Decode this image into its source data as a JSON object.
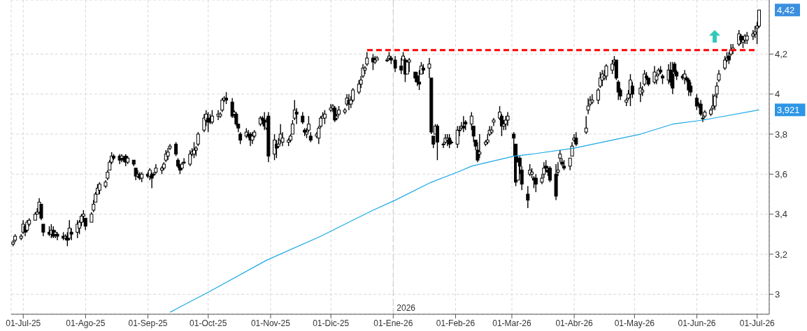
{
  "chart_data": {
    "type": "candlestick",
    "grid": true,
    "legend": false,
    "xlim": [
      "2025-06-25",
      "2026-07-07"
    ],
    "xticks": [
      {
        "value": "2025-07-01",
        "label": "01-Jul-25"
      },
      {
        "value": "2025-08-01",
        "label": "01-Ago-25"
      },
      {
        "value": "2025-09-01",
        "label": "01-Sep-25"
      },
      {
        "value": "2025-10-01",
        "label": "01-Oct-25"
      },
      {
        "value": "2025-11-01",
        "label": "01-Nov-25"
      },
      {
        "value": "2025-12-01",
        "label": "01-Dic-25"
      },
      {
        "value": "2026-01-01",
        "label": "01-Ene-26"
      },
      {
        "value": "2026-02-01",
        "label": "01-Feb-26"
      },
      {
        "value": "2026-03-01",
        "label": "01-Mar-26"
      },
      {
        "value": "2026-04-01",
        "label": "01-Abr-26"
      },
      {
        "value": "2026-05-01",
        "label": "01-May-26"
      },
      {
        "value": "2026-06-01",
        "label": "01-Jun-26"
      },
      {
        "value": "2026-07-01",
        "label": "01-Jul-26"
      }
    ],
    "ylim": [
      2.9,
      4.47
    ],
    "yticks": [
      3,
      {
        "value": 3.2,
        "label": "3,2"
      },
      {
        "value": 3.4,
        "label": "3,4"
      },
      {
        "value": 3.6,
        "label": "3,6"
      },
      {
        "value": 3.8,
        "label": "3,8"
      },
      4,
      {
        "value": 4.2,
        "label": "4,2"
      }
    ],
    "ref_lines": [
      {
        "axis": "x",
        "value": "2026-01-01",
        "label": "2026",
        "color": "#c8c8c8",
        "line_style": "dashed"
      }
    ],
    "annotations": [
      {
        "text": "4,42",
        "x": "2026-07-02",
        "y": 4.42
      },
      {
        "text": "3,921",
        "x": "2026-07-02",
        "y": 3.921
      }
    ],
    "series": [
      {
        "type": "candlestick",
        "color": "#000000",
        "x": [
          "2025-06-26",
          "2025-06-27",
          "2025-06-30",
          "2025-07-01",
          "2025-07-02",
          "2025-07-03",
          "2025-07-04",
          "2025-07-07",
          "2025-07-08",
          "2025-07-09",
          "2025-07-10",
          "2025-07-11",
          "2025-07-14",
          "2025-07-15",
          "2025-07-16",
          "2025-07-17",
          "2025-07-18",
          "2025-07-21",
          "2025-07-22",
          "2025-07-23",
          "2025-07-24",
          "2025-07-25",
          "2025-07-28",
          "2025-07-29",
          "2025-07-30",
          "2025-07-31",
          "2025-08-01",
          "2025-08-04",
          "2025-08-05",
          "2025-08-06",
          "2025-08-07",
          "2025-08-08",
          "2025-08-11",
          "2025-08-12",
          "2025-08-13",
          "2025-08-14",
          "2025-08-15",
          "2025-08-18",
          "2025-08-19",
          "2025-08-20",
          "2025-08-21",
          "2025-08-22",
          "2025-08-25",
          "2025-08-26",
          "2025-08-27",
          "2025-08-28",
          "2025-08-29",
          "2025-09-01",
          "2025-09-02",
          "2025-09-03",
          "2025-09-04",
          "2025-09-05",
          "2025-09-08",
          "2025-09-09",
          "2025-09-10",
          "2025-09-11",
          "2025-09-12",
          "2025-09-15",
          "2025-09-16",
          "2025-09-17",
          "2025-09-18",
          "2025-09-19",
          "2025-09-22",
          "2025-09-23",
          "2025-09-24",
          "2025-09-25",
          "2025-09-26",
          "2025-09-29",
          "2025-09-30",
          "2025-10-01",
          "2025-10-02",
          "2025-10-03",
          "2025-10-06",
          "2025-10-07",
          "2025-10-08",
          "2025-10-09",
          "2025-10-10",
          "2025-10-13",
          "2025-10-14",
          "2025-10-15",
          "2025-10-16",
          "2025-10-17",
          "2025-10-20",
          "2025-10-21",
          "2025-10-22",
          "2025-10-23",
          "2025-10-24",
          "2025-10-27",
          "2025-10-28",
          "2025-10-29",
          "2025-10-30",
          "2025-10-31",
          "2025-11-03",
          "2025-11-04",
          "2025-11-05",
          "2025-11-06",
          "2025-11-07",
          "2025-11-10",
          "2025-11-11",
          "2025-11-12",
          "2025-11-13",
          "2025-11-14",
          "2025-11-17",
          "2025-11-18",
          "2025-11-19",
          "2025-11-20",
          "2025-11-21",
          "2025-11-24",
          "2025-11-25",
          "2025-11-26",
          "2025-11-27",
          "2025-11-28",
          "2025-12-01",
          "2025-12-02",
          "2025-12-03",
          "2025-12-04",
          "2025-12-05",
          "2025-12-08",
          "2025-12-09",
          "2025-12-10",
          "2025-12-11",
          "2025-12-12",
          "2025-12-15",
          "2025-12-16",
          "2025-12-17",
          "2025-12-18",
          "2025-12-19",
          "2025-12-22",
          "2025-12-23",
          "2025-12-24",
          "2025-12-29",
          "2025-12-30",
          "2025-12-31",
          "2026-01-02",
          "2026-01-05",
          "2026-01-06",
          "2026-01-07",
          "2026-01-08",
          "2026-01-09",
          "2026-01-12",
          "2026-01-13",
          "2026-01-14",
          "2026-01-15",
          "2026-01-16",
          "2026-01-19",
          "2026-01-20",
          "2026-01-21",
          "2026-01-22",
          "2026-01-23",
          "2026-01-26",
          "2026-01-27",
          "2026-01-28",
          "2026-01-29",
          "2026-01-30",
          "2026-02-02",
          "2026-02-03",
          "2026-02-04",
          "2026-02-05",
          "2026-02-06",
          "2026-02-09",
          "2026-02-10",
          "2026-02-11",
          "2026-02-12",
          "2026-02-13",
          "2026-02-16",
          "2026-02-17",
          "2026-02-18",
          "2026-02-19",
          "2026-02-20",
          "2026-02-23",
          "2026-02-24",
          "2026-02-25",
          "2026-02-26",
          "2026-02-27",
          "2026-03-02",
          "2026-03-03",
          "2026-03-04",
          "2026-03-05",
          "2026-03-06",
          "2026-03-09",
          "2026-03-10",
          "2026-03-11",
          "2026-03-12",
          "2026-03-13",
          "2026-03-16",
          "2026-03-17",
          "2026-03-18",
          "2026-03-19",
          "2026-03-20",
          "2026-03-23",
          "2026-03-24",
          "2026-03-25",
          "2026-03-26",
          "2026-03-27",
          "2026-03-30",
          "2026-03-31",
          "2026-04-01",
          "2026-04-02",
          "2026-04-07",
          "2026-04-08",
          "2026-04-09",
          "2026-04-10",
          "2026-04-13",
          "2026-04-14",
          "2026-04-15",
          "2026-04-16",
          "2026-04-17",
          "2026-04-20",
          "2026-04-21",
          "2026-04-22",
          "2026-04-23",
          "2026-04-24",
          "2026-04-27",
          "2026-04-28",
          "2026-04-29",
          "2026-04-30",
          "2026-05-04",
          "2026-05-05",
          "2026-05-06",
          "2026-05-07",
          "2026-05-08",
          "2026-05-11",
          "2026-05-12",
          "2026-05-13",
          "2026-05-14",
          "2026-05-15",
          "2026-05-18",
          "2026-05-19",
          "2026-05-20",
          "2026-05-21",
          "2026-05-22",
          "2026-05-25",
          "2026-05-26",
          "2026-05-27",
          "2026-05-28",
          "2026-05-29",
          "2026-06-01",
          "2026-06-02",
          "2026-06-03",
          "2026-06-04",
          "2026-06-05",
          "2026-06-08",
          "2026-06-09",
          "2026-06-10",
          "2026-06-11",
          "2026-06-12",
          "2026-06-15",
          "2026-06-16",
          "2026-06-17",
          "2026-06-18",
          "2026-06-19",
          "2026-06-22",
          "2026-06-23",
          "2026-06-24",
          "2026-06-25",
          "2026-06-26",
          "2026-06-29",
          "2026-06-30",
          "2026-07-01",
          "2026-07-02"
        ],
        "ohlc": [
          [
            3.25,
            3.27,
            3.24,
            3.26
          ],
          [
            3.27,
            3.3,
            3.26,
            3.29
          ],
          [
            3.28,
            3.3,
            3.27,
            3.29
          ],
          [
            3.31,
            3.37,
            3.3,
            3.35
          ],
          [
            3.34,
            3.35,
            3.29,
            3.31
          ],
          [
            3.32,
            3.37,
            3.31,
            3.36
          ],
          [
            3.35,
            3.38,
            3.34,
            3.37
          ],
          [
            3.37,
            3.41,
            3.37,
            3.4
          ],
          [
            3.4,
            3.43,
            3.4,
            3.41
          ],
          [
            3.41,
            3.48,
            3.4,
            3.46
          ],
          [
            3.45,
            3.45,
            3.37,
            3.38
          ],
          [
            3.35,
            3.35,
            3.29,
            3.31
          ],
          [
            3.31,
            3.34,
            3.29,
            3.3
          ],
          [
            3.3,
            3.35,
            3.28,
            3.32
          ],
          [
            3.32,
            3.34,
            3.28,
            3.29
          ],
          [
            3.3,
            3.32,
            3.28,
            3.31
          ],
          [
            3.3,
            3.31,
            3.27,
            3.29
          ],
          [
            3.29,
            3.31,
            3.27,
            3.28
          ],
          [
            3.28,
            3.3,
            3.27,
            3.29
          ],
          [
            3.29,
            3.31,
            3.24,
            3.27
          ],
          [
            3.28,
            3.37,
            3.27,
            3.33
          ],
          [
            3.31,
            3.33,
            3.27,
            3.3
          ],
          [
            3.31,
            3.37,
            3.28,
            3.35
          ],
          [
            3.33,
            3.37,
            3.3,
            3.36
          ],
          [
            3.36,
            3.4,
            3.34,
            3.39
          ],
          [
            3.39,
            3.42,
            3.36,
            3.4
          ],
          [
            3.38,
            3.38,
            3.32,
            3.34
          ],
          [
            3.36,
            3.41,
            3.36,
            3.4
          ],
          [
            3.42,
            3.47,
            3.41,
            3.45
          ],
          [
            3.46,
            3.51,
            3.46,
            3.5
          ],
          [
            3.5,
            3.55,
            3.5,
            3.53
          ],
          [
            3.52,
            3.56,
            3.5,
            3.55
          ],
          [
            3.54,
            3.57,
            3.53,
            3.56
          ],
          [
            3.58,
            3.62,
            3.57,
            3.61
          ],
          [
            3.62,
            3.67,
            3.62,
            3.66
          ],
          [
            3.66,
            3.71,
            3.65,
            3.69
          ],
          [
            3.69,
            3.7,
            3.67,
            3.68
          ],
          [
            3.69,
            3.7,
            3.65,
            3.67
          ],
          [
            3.68,
            3.7,
            3.66,
            3.69
          ],
          [
            3.68,
            3.69,
            3.66,
            3.67
          ],
          [
            3.69,
            3.7,
            3.64,
            3.66
          ],
          [
            3.66,
            3.69,
            3.65,
            3.68
          ],
          [
            3.67,
            3.67,
            3.64,
            3.65
          ],
          [
            3.63,
            3.63,
            3.57,
            3.59
          ],
          [
            3.59,
            3.62,
            3.58,
            3.6
          ],
          [
            3.6,
            3.61,
            3.57,
            3.58
          ],
          [
            3.58,
            3.61,
            3.56,
            3.6
          ],
          [
            3.6,
            3.61,
            3.58,
            3.59
          ],
          [
            3.59,
            3.63,
            3.57,
            3.62
          ],
          [
            3.6,
            3.61,
            3.53,
            3.58
          ],
          [
            3.6,
            3.61,
            3.59,
            3.6
          ],
          [
            3.61,
            3.65,
            3.6,
            3.63
          ],
          [
            3.62,
            3.64,
            3.6,
            3.63
          ],
          [
            3.63,
            3.66,
            3.62,
            3.65
          ],
          [
            3.67,
            3.72,
            3.66,
            3.7
          ],
          [
            3.69,
            3.73,
            3.67,
            3.71
          ],
          [
            3.73,
            3.75,
            3.72,
            3.74
          ],
          [
            3.75,
            3.76,
            3.69,
            3.7
          ],
          [
            3.67,
            3.68,
            3.63,
            3.64
          ],
          [
            3.64,
            3.65,
            3.6,
            3.62
          ],
          [
            3.63,
            3.66,
            3.62,
            3.65
          ],
          [
            3.66,
            3.68,
            3.65,
            3.66
          ],
          [
            3.65,
            3.72,
            3.64,
            3.7
          ],
          [
            3.7,
            3.73,
            3.69,
            3.71
          ],
          [
            3.7,
            3.76,
            3.68,
            3.72
          ],
          [
            3.72,
            3.74,
            3.69,
            3.73
          ],
          [
            3.75,
            3.81,
            3.74,
            3.8
          ],
          [
            3.82,
            3.9,
            3.81,
            3.88
          ],
          [
            3.87,
            3.92,
            3.84,
            3.9
          ],
          [
            3.88,
            3.91,
            3.81,
            3.86
          ],
          [
            3.87,
            3.9,
            3.85,
            3.86
          ],
          [
            3.86,
            3.92,
            3.85,
            3.89
          ],
          [
            3.89,
            3.92,
            3.87,
            3.9
          ],
          [
            3.89,
            3.91,
            3.88,
            3.9
          ],
          [
            3.92,
            3.98,
            3.91,
            3.97
          ],
          [
            3.97,
            3.99,
            3.96,
            3.98
          ],
          [
            3.98,
            4.01,
            3.95,
            3.97
          ],
          [
            3.96,
            3.98,
            3.88,
            3.89
          ],
          [
            3.9,
            3.92,
            3.88,
            3.91
          ],
          [
            3.9,
            3.91,
            3.84,
            3.85
          ],
          [
            3.85,
            3.85,
            3.81,
            3.83
          ],
          [
            3.8,
            3.81,
            3.75,
            3.77
          ],
          [
            3.79,
            3.83,
            3.78,
            3.81
          ],
          [
            3.8,
            3.82,
            3.78,
            3.79
          ],
          [
            3.8,
            3.81,
            3.74,
            3.77
          ],
          [
            3.77,
            3.81,
            3.75,
            3.79
          ],
          [
            3.79,
            3.82,
            3.78,
            3.81
          ],
          [
            3.85,
            3.89,
            3.84,
            3.88
          ],
          [
            3.88,
            3.89,
            3.85,
            3.87
          ],
          [
            3.87,
            3.91,
            3.82,
            3.84
          ],
          [
            3.83,
            3.88,
            3.82,
            3.86
          ],
          [
            3.89,
            3.91,
            3.66,
            3.69
          ],
          [
            3.7,
            3.8,
            3.67,
            3.77
          ],
          [
            3.75,
            3.77,
            3.68,
            3.73
          ],
          [
            3.74,
            3.78,
            3.73,
            3.75
          ],
          [
            3.77,
            3.85,
            3.75,
            3.8
          ],
          [
            3.76,
            3.81,
            3.74,
            3.78
          ],
          [
            3.76,
            3.78,
            3.74,
            3.77
          ],
          [
            3.77,
            3.8,
            3.76,
            3.79
          ],
          [
            3.8,
            3.87,
            3.8,
            3.85
          ],
          [
            3.88,
            3.97,
            3.87,
            3.92
          ],
          [
            3.91,
            3.93,
            3.85,
            3.9
          ],
          [
            3.89,
            3.91,
            3.85,
            3.86
          ],
          [
            3.82,
            3.83,
            3.79,
            3.81
          ],
          [
            3.8,
            3.83,
            3.78,
            3.81
          ],
          [
            3.82,
            3.89,
            3.81,
            3.85
          ],
          [
            3.79,
            3.81,
            3.76,
            3.77
          ],
          [
            3.79,
            3.81,
            3.78,
            3.8
          ],
          [
            3.78,
            3.84,
            3.75,
            3.83
          ],
          [
            3.84,
            3.89,
            3.83,
            3.88
          ],
          [
            3.88,
            3.91,
            3.88,
            3.89
          ],
          [
            3.88,
            3.92,
            3.85,
            3.9
          ],
          [
            3.92,
            3.95,
            3.91,
            3.93
          ],
          [
            3.93,
            3.95,
            3.91,
            3.94
          ],
          [
            3.93,
            3.94,
            3.86,
            3.87
          ],
          [
            3.88,
            3.9,
            3.87,
            3.89
          ],
          [
            3.9,
            3.94,
            3.89,
            3.92
          ],
          [
            3.91,
            3.93,
            3.9,
            3.92
          ],
          [
            3.95,
            4.0,
            3.94,
            3.98
          ],
          [
            3.97,
            4.0,
            3.92,
            3.95
          ],
          [
            3.95,
            3.99,
            3.93,
            3.97
          ],
          [
            3.97,
            4.03,
            3.96,
            4.02
          ],
          [
            4.01,
            4.07,
            4.0,
            4.05
          ],
          [
            4.05,
            4.09,
            4.03,
            4.07
          ],
          [
            4.09,
            4.15,
            4.08,
            4.13
          ],
          [
            4.12,
            4.14,
            4.1,
            4.13
          ],
          [
            4.15,
            4.21,
            4.14,
            4.18
          ],
          [
            4.18,
            4.2,
            4.12,
            4.16
          ],
          [
            4.16,
            4.19,
            4.15,
            4.17
          ],
          [
            4.17,
            4.19,
            4.17,
            4.18
          ],
          [
            4.17,
            4.18,
            4.16,
            4.17
          ],
          [
            4.18,
            4.21,
            4.17,
            4.19
          ],
          [
            4.18,
            4.19,
            4.15,
            4.17
          ],
          [
            4.17,
            4.19,
            4.11,
            4.13
          ],
          [
            4.14,
            4.18,
            4.1,
            4.12
          ],
          [
            4.17,
            4.21,
            4.17,
            4.19
          ],
          [
            4.17,
            4.18,
            4.06,
            4.1
          ],
          [
            4.1,
            4.17,
            4.1,
            4.16
          ],
          [
            4.16,
            4.18,
            4.11,
            4.17
          ],
          [
            4.11,
            4.11,
            4.06,
            4.08
          ],
          [
            4.09,
            4.11,
            4.04,
            4.06
          ],
          [
            4.06,
            4.12,
            4.02,
            4.05
          ],
          [
            4.1,
            4.16,
            4.1,
            4.14
          ],
          [
            4.13,
            4.15,
            4.1,
            4.12
          ],
          [
            4.13,
            4.18,
            4.08,
            4.15
          ],
          [
            4.08,
            4.08,
            3.8,
            3.81
          ],
          [
            3.79,
            3.79,
            3.73,
            3.75
          ],
          [
            3.8,
            3.85,
            3.8,
            3.84
          ],
          [
            3.84,
            3.85,
            3.67,
            3.76
          ],
          [
            3.75,
            3.76,
            3.73,
            3.75
          ],
          [
            3.76,
            3.8,
            3.75,
            3.78
          ],
          [
            3.77,
            3.8,
            3.74,
            3.78
          ],
          [
            3.78,
            3.8,
            3.73,
            3.75
          ],
          [
            3.76,
            3.77,
            3.75,
            3.76
          ],
          [
            3.75,
            3.84,
            3.73,
            3.82
          ],
          [
            3.82,
            3.84,
            3.79,
            3.82
          ],
          [
            3.83,
            3.86,
            3.82,
            3.84
          ],
          [
            3.84,
            3.89,
            3.81,
            3.83
          ],
          [
            3.86,
            3.87,
            3.82,
            3.85
          ],
          [
            3.85,
            3.91,
            3.82,
            3.89
          ],
          [
            3.84,
            3.84,
            3.76,
            3.79
          ],
          [
            3.77,
            3.77,
            3.72,
            3.74
          ],
          [
            3.72,
            3.76,
            3.66,
            3.67
          ],
          [
            3.7,
            3.8,
            3.68,
            3.71
          ],
          [
            3.75,
            3.77,
            3.74,
            3.76
          ],
          [
            3.76,
            3.8,
            3.75,
            3.77
          ],
          [
            3.8,
            3.84,
            3.79,
            3.82
          ],
          [
            3.81,
            3.84,
            3.8,
            3.82
          ],
          [
            3.86,
            3.88,
            3.84,
            3.87
          ],
          [
            3.88,
            3.94,
            3.87,
            3.91
          ],
          [
            3.89,
            3.9,
            3.79,
            3.84
          ],
          [
            3.84,
            3.87,
            3.82,
            3.85
          ],
          [
            3.85,
            3.89,
            3.82,
            3.87
          ],
          [
            3.87,
            3.91,
            3.84,
            3.89
          ],
          [
            3.8,
            3.81,
            3.69,
            3.78
          ],
          [
            3.75,
            3.75,
            3.54,
            3.56
          ],
          [
            3.57,
            3.69,
            3.57,
            3.66
          ],
          [
            3.68,
            3.69,
            3.6,
            3.64
          ],
          [
            3.62,
            3.64,
            3.52,
            3.55
          ],
          [
            3.5,
            3.54,
            3.43,
            3.47
          ],
          [
            3.6,
            3.65,
            3.59,
            3.62
          ],
          [
            3.6,
            3.63,
            3.58,
            3.61
          ],
          [
            3.58,
            3.59,
            3.53,
            3.57
          ],
          [
            3.58,
            3.6,
            3.51,
            3.55
          ],
          [
            3.56,
            3.6,
            3.55,
            3.58
          ],
          [
            3.6,
            3.66,
            3.58,
            3.63
          ],
          [
            3.64,
            3.67,
            3.61,
            3.63
          ],
          [
            3.62,
            3.64,
            3.59,
            3.61
          ],
          [
            3.63,
            3.64,
            3.56,
            3.57
          ],
          [
            3.6,
            3.65,
            3.47,
            3.49
          ],
          [
            3.61,
            3.66,
            3.59,
            3.62
          ],
          [
            3.68,
            3.72,
            3.66,
            3.7
          ],
          [
            3.66,
            3.68,
            3.64,
            3.65
          ],
          [
            3.64,
            3.67,
            3.62,
            3.63
          ],
          [
            3.64,
            3.68,
            3.62,
            3.68
          ],
          [
            3.69,
            3.76,
            3.69,
            3.74
          ],
          [
            3.77,
            3.8,
            3.76,
            3.78
          ],
          [
            3.78,
            3.81,
            3.74,
            3.75
          ],
          [
            3.81,
            3.89,
            3.8,
            3.83
          ],
          [
            3.92,
            3.98,
            3.9,
            3.94
          ],
          [
            3.95,
            3.99,
            3.94,
            3.97
          ],
          [
            3.96,
            4.0,
            3.95,
            3.97
          ],
          [
            3.97,
            4.03,
            3.95,
            4.02
          ],
          [
            4.04,
            4.11,
            4.03,
            4.08
          ],
          [
            4.07,
            4.12,
            4.04,
            4.1
          ],
          [
            4.08,
            4.12,
            4.07,
            4.09
          ],
          [
            4.09,
            4.15,
            4.07,
            4.14
          ],
          [
            4.12,
            4.17,
            4.1,
            4.15
          ],
          [
            4.16,
            4.19,
            4.14,
            4.17
          ],
          [
            4.17,
            4.17,
            4.07,
            4.08
          ],
          [
            4.06,
            4.07,
            3.97,
            4.01
          ],
          [
            4.02,
            4.03,
            3.97,
            3.99
          ],
          [
            3.96,
            3.98,
            3.94,
            3.97
          ],
          [
            3.98,
            4.02,
            3.97,
            4.0
          ],
          [
            4.0,
            4.1,
            3.94,
            4.07
          ],
          [
            4.04,
            4.06,
            3.98,
            4.0
          ],
          [
            4.0,
            4.06,
            3.96,
            4.03
          ],
          [
            4.01,
            4.04,
            3.99,
            4.02
          ],
          [
            4.05,
            4.12,
            4.04,
            4.1
          ],
          [
            4.09,
            4.11,
            4.07,
            4.08
          ],
          [
            4.08,
            4.08,
            4.04,
            4.05
          ],
          [
            4.06,
            4.14,
            4.05,
            4.11
          ],
          [
            4.07,
            4.1,
            4.05,
            4.09
          ],
          [
            4.1,
            4.13,
            4.09,
            4.12
          ],
          [
            4.12,
            4.14,
            4.1,
            4.11
          ],
          [
            4.09,
            4.1,
            4.05,
            4.08
          ],
          [
            4.07,
            4.15,
            4.05,
            4.12
          ],
          [
            4.12,
            4.16,
            4.04,
            4.06
          ],
          [
            4.1,
            4.16,
            4.0,
            4.03
          ],
          [
            4.15,
            4.16,
            4.1,
            4.11
          ],
          [
            4.11,
            4.12,
            4.07,
            4.09
          ],
          [
            4.09,
            4.1,
            4.07,
            4.08
          ],
          [
            4.08,
            4.12,
            4.05,
            4.1
          ],
          [
            4.08,
            4.09,
            4.06,
            4.07
          ],
          [
            4.07,
            4.08,
            3.99,
            4.02
          ],
          [
            4.04,
            4.06,
            3.99,
            4.01
          ],
          [
            3.98,
            4.0,
            3.92,
            3.94
          ],
          [
            3.95,
            3.96,
            3.93,
            3.95
          ],
          [
            3.95,
            3.97,
            3.89,
            3.9
          ],
          [
            3.88,
            3.9,
            3.86,
            3.88
          ],
          [
            3.89,
            3.92,
            3.88,
            3.91
          ],
          [
            3.9,
            3.93,
            3.89,
            3.92
          ],
          [
            3.93,
            4.0,
            3.92,
            3.94
          ],
          [
            3.94,
            4.0,
            3.92,
            3.99
          ],
          [
            4.0,
            4.06,
            3.98,
            4.04
          ],
          [
            4.07,
            4.12,
            4.06,
            4.1
          ],
          [
            4.13,
            4.19,
            4.12,
            4.17
          ],
          [
            4.17,
            4.21,
            4.16,
            4.18
          ],
          [
            4.19,
            4.21,
            4.15,
            4.17
          ],
          [
            4.2,
            4.25,
            4.19,
            4.22
          ],
          [
            4.22,
            4.25,
            4.2,
            4.23
          ],
          [
            4.25,
            4.32,
            4.24,
            4.3
          ],
          [
            4.29,
            4.3,
            4.25,
            4.27
          ],
          [
            4.26,
            4.29,
            4.23,
            4.27
          ],
          [
            4.27,
            4.3,
            4.25,
            4.29
          ],
          [
            4.27,
            4.31,
            4.25,
            4.29
          ],
          [
            4.29,
            4.32,
            4.27,
            4.3
          ],
          [
            4.3,
            4.34,
            4.28,
            4.31
          ],
          [
            4.33,
            4.36,
            4.25,
            4.34
          ],
          [
            4.34,
            4.42,
            4.33,
            4.42
          ]
        ]
      },
      {
        "type": "line",
        "color": "#1aa7e8",
        "x": [
          "2025-09-12",
          "2025-10-01",
          "2025-10-30",
          "2025-11-26",
          "2025-12-22",
          "2026-01-02",
          "2026-01-20",
          "2026-02-02",
          "2026-02-09",
          "2026-03-02",
          "2026-03-11",
          "2026-04-01",
          "2026-05-04",
          "2026-05-20",
          "2026-06-04",
          "2026-07-02"
        ],
        "values": [
          2.91,
          3.01,
          3.17,
          3.29,
          3.42,
          3.47,
          3.56,
          3.61,
          3.64,
          3.69,
          3.7,
          3.73,
          3.8,
          3.85,
          3.87,
          3.921
        ]
      },
      {
        "type": "line",
        "color": "#ff0000",
        "line_style": "dashed",
        "x": [
          "2025-12-19",
          "2026-07-01"
        ],
        "values": [
          4.22,
          4.22
        ]
      }
    ]
  }
}
